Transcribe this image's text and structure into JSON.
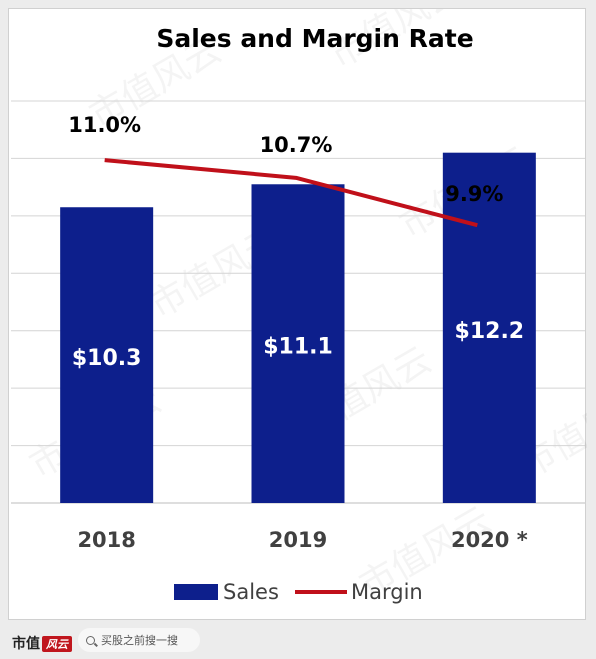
{
  "chart_data": {
    "type": "bar",
    "title": "Sales and Margin Rate",
    "categories": [
      "2018",
      "2019",
      "2020 *"
    ],
    "series": [
      {
        "name": "Sales",
        "type": "bar",
        "values": [
          10.3,
          11.1,
          12.2
        ],
        "labels": [
          "$10.3",
          "$11.1",
          "$12.2"
        ],
        "color": "#0d1f8c"
      },
      {
        "name": "Margin",
        "type": "line",
        "values": [
          11.0,
          10.7,
          9.9
        ],
        "labels": [
          "11.0%",
          "10.7%",
          "9.9%"
        ],
        "color": "#c0101a"
      }
    ],
    "ylim": [
      0,
      14
    ],
    "margin_ylim": [
      5.2,
      12.0
    ],
    "grid": true,
    "legend": "bottom"
  },
  "watermark": "市值风云",
  "footer": {
    "brand": "市值",
    "brand_badge": "风云",
    "search_placeholder": "买股之前搜一搜"
  },
  "colors": {
    "bar": "#0d1f8c",
    "line": "#c0101a",
    "grid": "#d4d4d4",
    "axis_text": "#404040"
  }
}
